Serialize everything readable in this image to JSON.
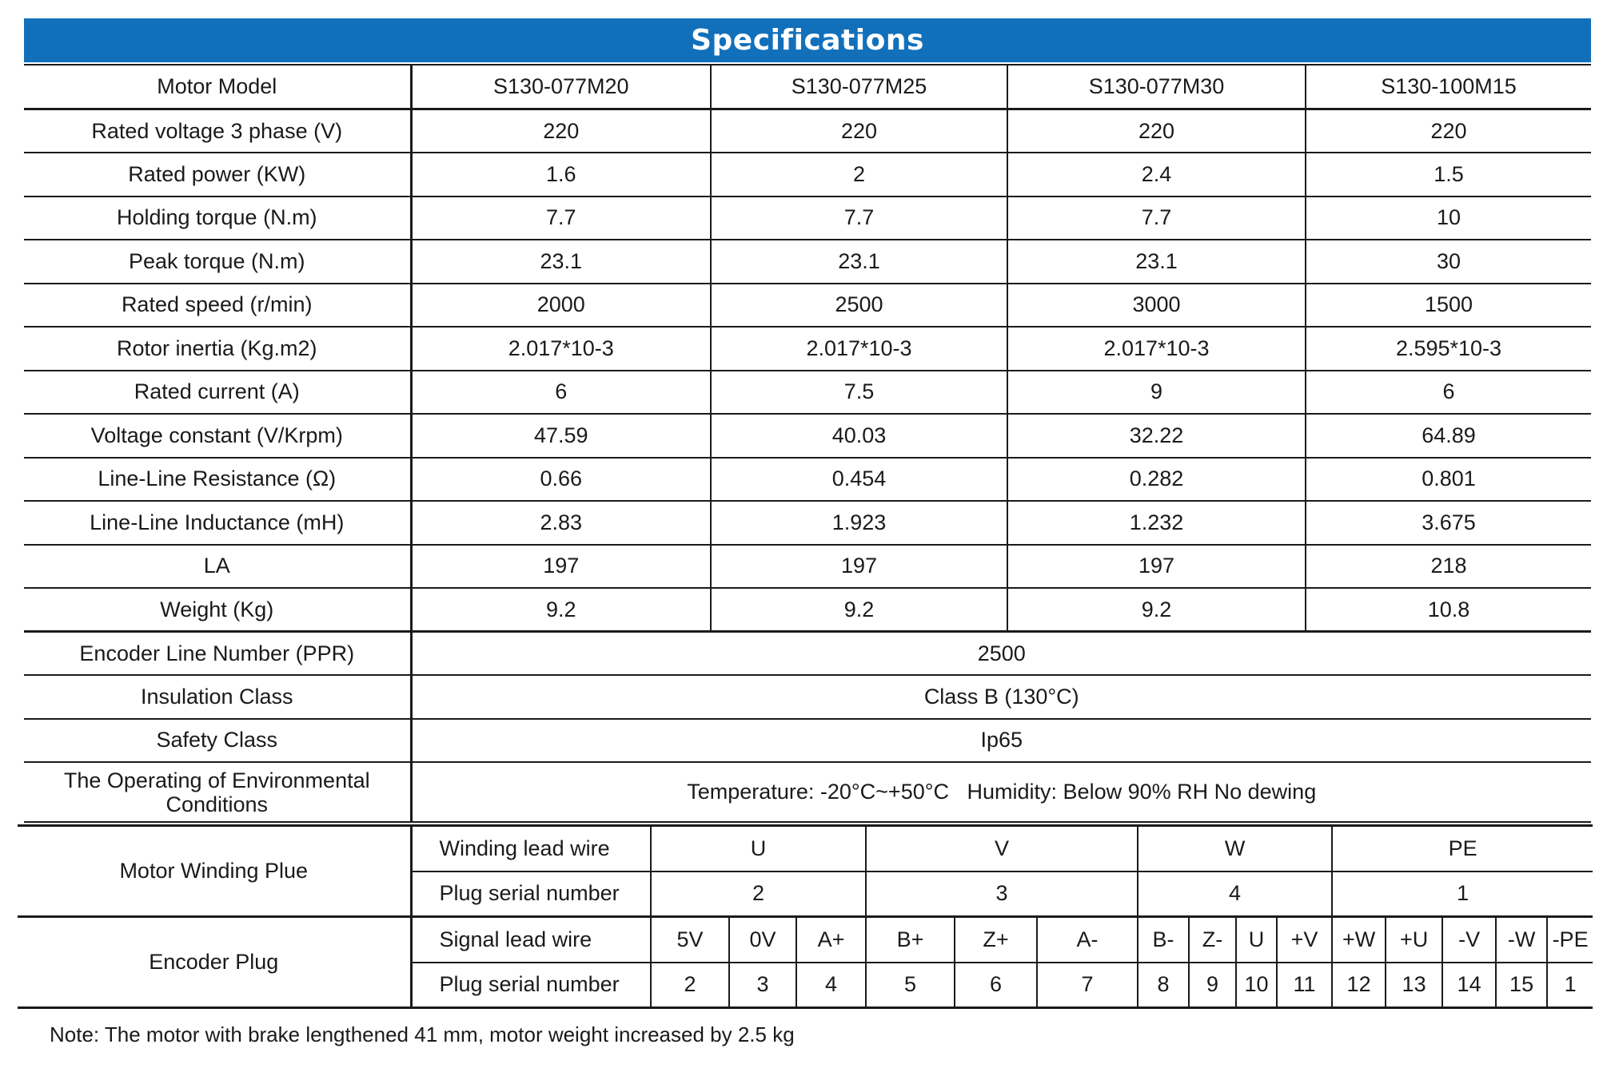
{
  "title": "Specifications",
  "spec_table": {
    "header_label": "Motor Model",
    "models": [
      "S130-077M20",
      "S130-077M25",
      "S130-077M30",
      "S130-100M15"
    ],
    "rows": [
      {
        "label": "Rated voltage 3 phase (V)",
        "values": [
          "220",
          "220",
          "220",
          "220"
        ]
      },
      {
        "label": "Rated power (KW)",
        "values": [
          "1.6",
          "2",
          "2.4",
          "1.5"
        ]
      },
      {
        "label": "Holding torque (N.m)",
        "values": [
          "7.7",
          "7.7",
          "7.7",
          "10"
        ]
      },
      {
        "label": "Peak torque (N.m)",
        "values": [
          "23.1",
          "23.1",
          "23.1",
          "30"
        ]
      },
      {
        "label": "Rated speed (r/min)",
        "values": [
          "2000",
          "2500",
          "3000",
          "1500"
        ]
      },
      {
        "label": "Rotor inertia (Kg.m2)",
        "values": [
          "2.017*10-3",
          "2.017*10-3",
          "2.017*10-3",
          "2.595*10-3"
        ]
      },
      {
        "label": "Rated current (A)",
        "values": [
          "6",
          "7.5",
          "9",
          "6"
        ]
      },
      {
        "label": "Voltage constant (V/Krpm)",
        "values": [
          "47.59",
          "40.03",
          "32.22",
          "64.89"
        ]
      },
      {
        "label": "Line-Line Resistance (Ω)",
        "values": [
          "0.66",
          "0.454",
          "0.282",
          "0.801"
        ]
      },
      {
        "label": "Line-Line Inductance (mH)",
        "values": [
          "2.83",
          "1.923",
          "1.232",
          "3.675"
        ]
      },
      {
        "label": "LA",
        "values": [
          "197",
          "197",
          "197",
          "218"
        ]
      },
      {
        "label": "Weight (Kg)",
        "values": [
          "9.2",
          "9.2",
          "9.2",
          "10.8"
        ]
      }
    ],
    "shared_rows": [
      {
        "label": "Encoder Line Number (PPR)",
        "value": "2500"
      },
      {
        "label": "Insulation Class",
        "value": "Class B (130°C)"
      },
      {
        "label": "Safety Class",
        "value": "Ip65"
      },
      {
        "label": "The Operating of Environmental Conditions",
        "value": "Temperature: -20°C~+50°C   Humidity: Below 90% RH No dewing"
      }
    ]
  },
  "winding": {
    "label": "Motor Winding Plue",
    "lead_label": "Winding lead wire",
    "leads": [
      "U",
      "V",
      "W",
      "PE"
    ],
    "serial_label": "Plug serial number",
    "serials": [
      "2",
      "3",
      "4",
      "1"
    ]
  },
  "encoder": {
    "label": "Encoder Plug",
    "lead_label": "Signal lead wire",
    "leads": [
      "5V",
      "0V",
      "A+",
      "B+",
      "Z+",
      "A-",
      "B-",
      "Z-",
      "U",
      "+V",
      "+W",
      "+U",
      "-V",
      "-W",
      "-PE"
    ],
    "serial_label": "Plug serial number",
    "serials": [
      "2",
      "3",
      "4",
      "5",
      "6",
      "7",
      "8",
      "9",
      "10",
      "11",
      "12",
      "13",
      "14",
      "15",
      "1"
    ]
  },
  "note": "Note: The motor with brake lengthened 41 mm, motor weight increased by 2.5 kg"
}
